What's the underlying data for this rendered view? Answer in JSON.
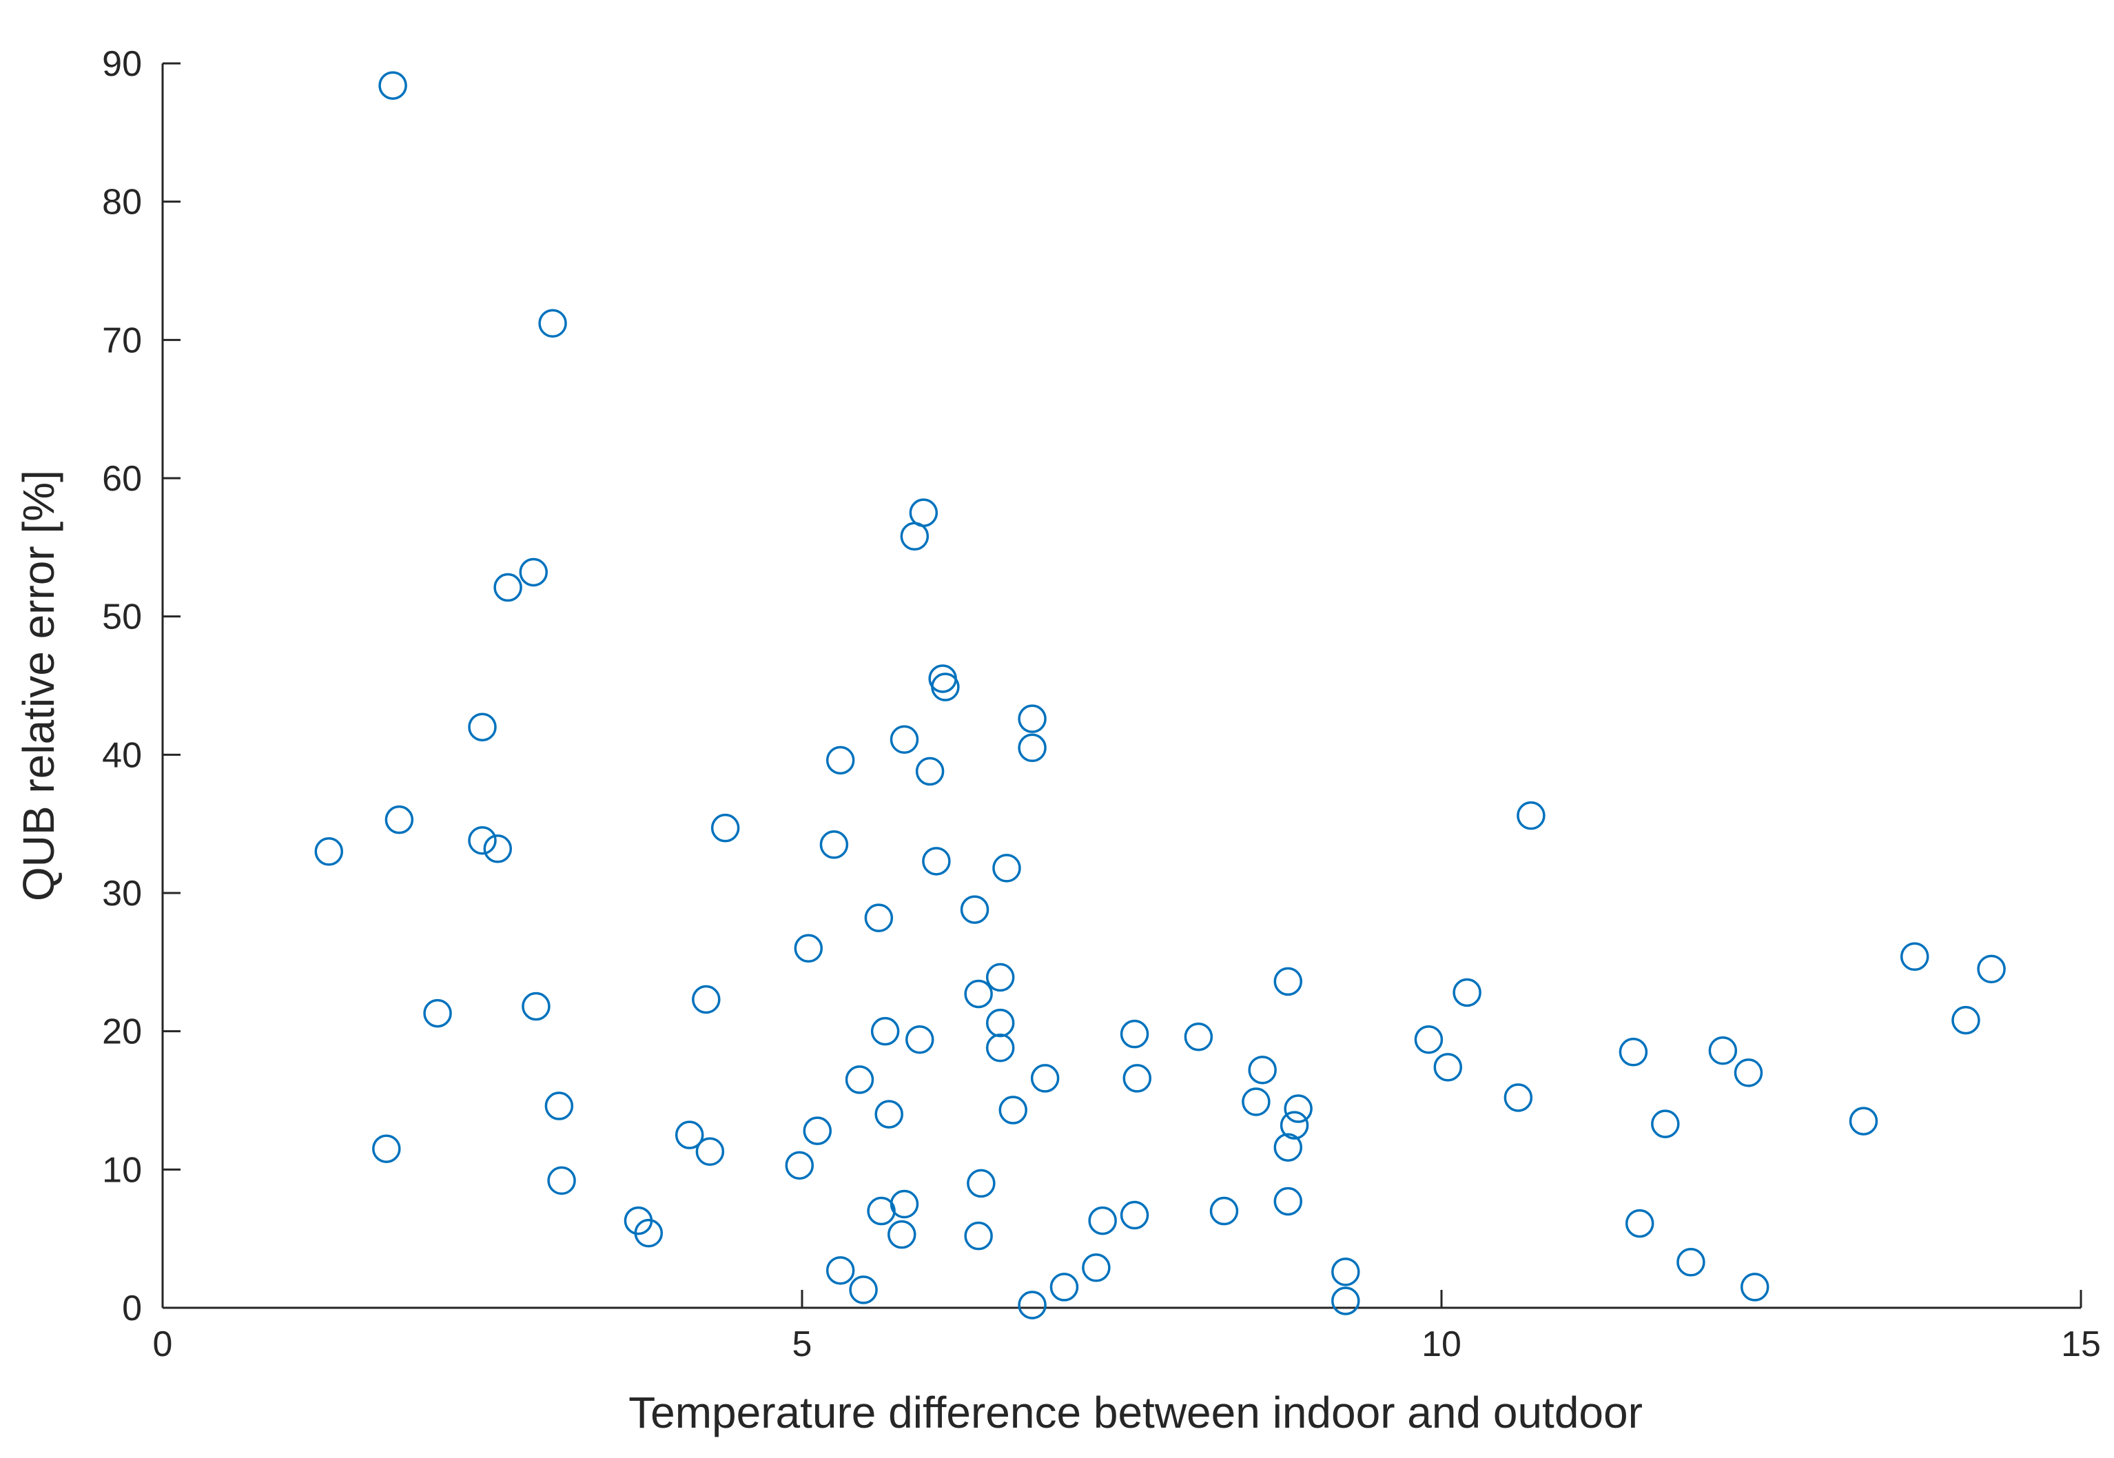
{
  "chart_data": {
    "type": "scatter",
    "title": "",
    "xlabel": "Temperature difference between indoor and outdoor",
    "ylabel": "QUB relative error [%]",
    "xlim": [
      0,
      15
    ],
    "ylim": [
      0,
      90
    ],
    "x_ticks": [
      0,
      5,
      10,
      15
    ],
    "y_ticks": [
      0,
      10,
      20,
      30,
      40,
      50,
      60,
      70,
      80,
      90
    ],
    "grid": false,
    "legend": "none",
    "marker": "circle-open",
    "color": "#0072BD",
    "series": [
      {
        "points": [
          [
            1.8,
            88.4
          ],
          [
            3.05,
            71.2
          ],
          [
            5.95,
            57.5
          ],
          [
            5.88,
            55.8
          ],
          [
            2.9,
            53.2
          ],
          [
            2.7,
            52.1
          ],
          [
            6.1,
            45.5
          ],
          [
            6.12,
            44.9
          ],
          [
            6.8,
            42.6
          ],
          [
            2.5,
            42.0
          ],
          [
            5.8,
            41.1
          ],
          [
            6.8,
            40.5
          ],
          [
            5.3,
            39.6
          ],
          [
            6.0,
            38.8
          ],
          [
            10.7,
            35.6
          ],
          [
            1.85,
            35.3
          ],
          [
            4.4,
            34.7
          ],
          [
            2.5,
            33.8
          ],
          [
            5.25,
            33.5
          ],
          [
            2.62,
            33.2
          ],
          [
            1.3,
            33.0
          ],
          [
            6.05,
            32.3
          ],
          [
            6.6,
            31.8
          ],
          [
            6.35,
            28.8
          ],
          [
            5.6,
            28.2
          ],
          [
            5.05,
            26.0
          ],
          [
            13.7,
            25.4
          ],
          [
            14.3,
            24.5
          ],
          [
            6.55,
            23.9
          ],
          [
            8.8,
            23.6
          ],
          [
            10.2,
            22.8
          ],
          [
            6.38,
            22.7
          ],
          [
            4.25,
            22.3
          ],
          [
            2.92,
            21.8
          ],
          [
            2.15,
            21.3
          ],
          [
            14.1,
            20.8
          ],
          [
            6.55,
            20.6
          ],
          [
            5.65,
            20.0
          ],
          [
            7.6,
            19.8
          ],
          [
            8.1,
            19.6
          ],
          [
            9.9,
            19.4
          ],
          [
            5.92,
            19.4
          ],
          [
            6.55,
            18.8
          ],
          [
            12.2,
            18.6
          ],
          [
            11.5,
            18.5
          ],
          [
            10.05,
            17.4
          ],
          [
            8.6,
            17.2
          ],
          [
            12.4,
            17.0
          ],
          [
            6.9,
            16.6
          ],
          [
            7.62,
            16.6
          ],
          [
            5.45,
            16.5
          ],
          [
            10.6,
            15.2
          ],
          [
            8.55,
            14.9
          ],
          [
            3.1,
            14.6
          ],
          [
            8.88,
            14.4
          ],
          [
            6.65,
            14.3
          ],
          [
            5.68,
            14.0
          ],
          [
            13.3,
            13.5
          ],
          [
            11.75,
            13.3
          ],
          [
            8.85,
            13.2
          ],
          [
            5.12,
            12.8
          ],
          [
            4.12,
            12.5
          ],
          [
            8.8,
            11.6
          ],
          [
            1.75,
            11.5
          ],
          [
            4.28,
            11.3
          ],
          [
            4.98,
            10.3
          ],
          [
            3.12,
            9.2
          ],
          [
            6.4,
            9.0
          ],
          [
            8.8,
            7.7
          ],
          [
            5.8,
            7.5
          ],
          [
            5.62,
            7.0
          ],
          [
            8.3,
            7.0
          ],
          [
            7.6,
            6.7
          ],
          [
            7.35,
            6.3
          ],
          [
            3.72,
            6.3
          ],
          [
            11.55,
            6.1
          ],
          [
            3.8,
            5.4
          ],
          [
            5.78,
            5.3
          ],
          [
            6.38,
            5.2
          ],
          [
            11.95,
            3.3
          ],
          [
            7.3,
            2.9
          ],
          [
            5.3,
            2.7
          ],
          [
            9.25,
            2.6
          ],
          [
            7.05,
            1.5
          ],
          [
            12.45,
            1.5
          ],
          [
            5.48,
            1.3
          ],
          [
            9.25,
            0.5
          ],
          [
            6.8,
            0.2
          ]
        ]
      }
    ]
  }
}
